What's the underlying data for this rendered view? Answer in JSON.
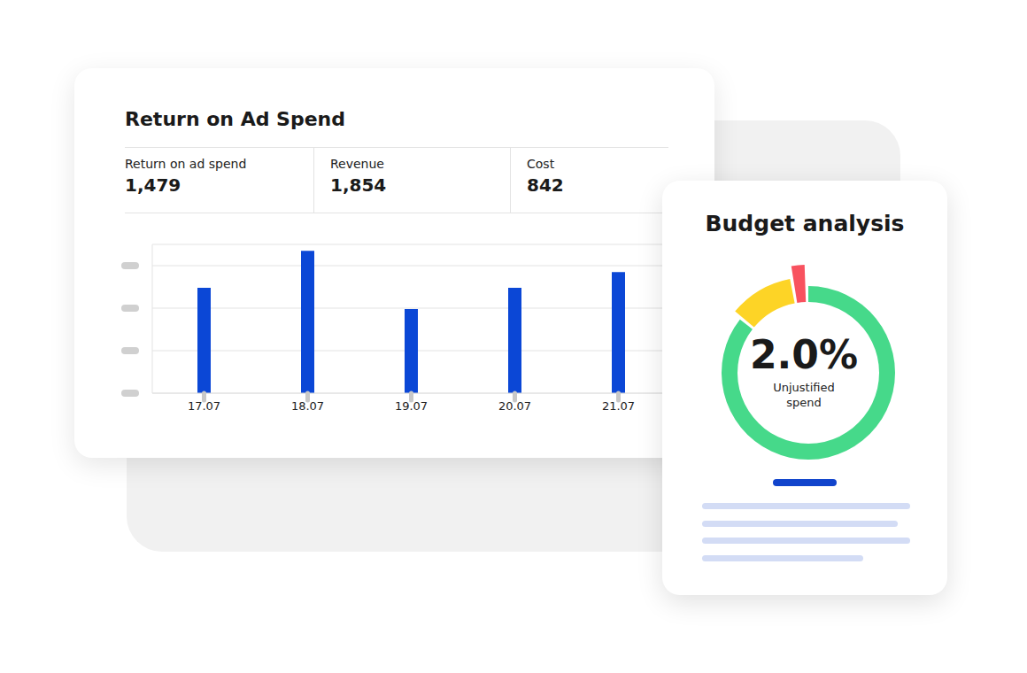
{
  "chart_data": [
    {
      "type": "bar",
      "title": "Return on Ad Spend",
      "metrics": [
        {
          "name": "Return on ad spend",
          "value": 1479,
          "label": "1,479"
        },
        {
          "name": "Revenue",
          "value": 1854,
          "label": "1,854"
        },
        {
          "name": "Cost",
          "value": 842,
          "label": "842"
        }
      ],
      "categories": [
        "17.07",
        "18.07",
        "19.07",
        "20.07",
        "21.07"
      ],
      "values": [
        2.48,
        3.35,
        1.98,
        2.48,
        2.85
      ],
      "color": "#0b47d6",
      "ylim": [
        0,
        3.5
      ],
      "yticks": [
        0,
        1,
        2,
        3
      ],
      "grid": true,
      "tick_labels": "x"
    },
    {
      "type": "pie",
      "title": "Budget analysis",
      "values": [
        87,
        11,
        2.0
      ],
      "colors": [
        "#46d98a",
        "#fdd426",
        "#f8525f"
      ],
      "center_value": {
        "value": 2.0,
        "label": "2.0%"
      },
      "center_text": "Unjustified spend"
    }
  ]
}
